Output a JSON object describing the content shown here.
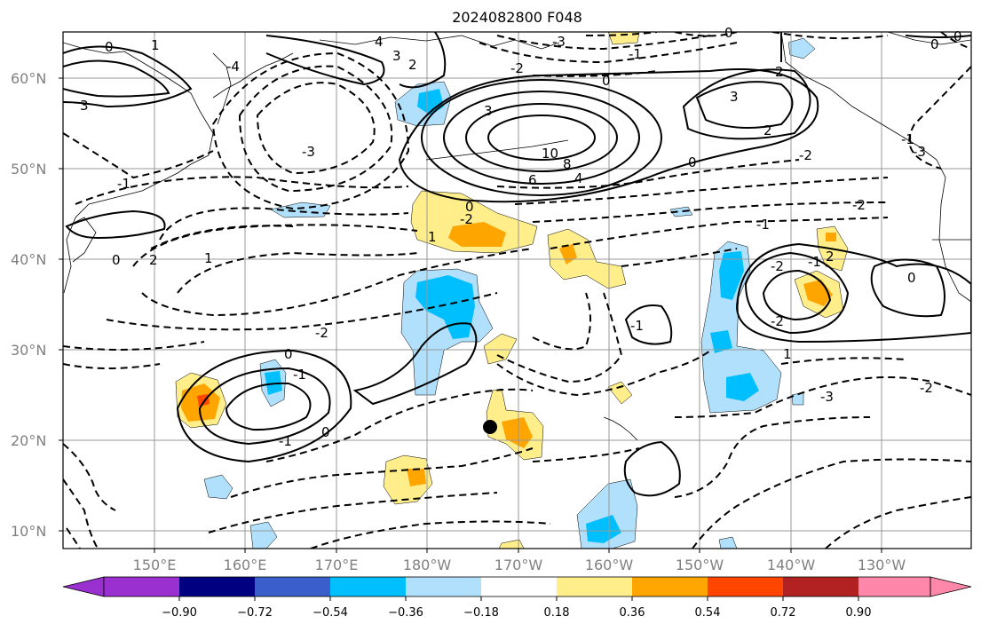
{
  "title": "2024082800 F048",
  "lat_labels": [
    "60°N",
    "50°N",
    "40°N",
    "30°N",
    "20°N",
    "10°N"
  ],
  "lon_labels": [
    "150°E",
    "160°E",
    "170°E",
    "180°W",
    "170°W",
    "160°W",
    "150°W",
    "140°W",
    "130°W"
  ],
  "colorbar": {
    "tick_labels": [
      "−0.90",
      "−0.72",
      "−0.54",
      "−0.36",
      "−0.18",
      "0.18",
      "0.36",
      "0.54",
      "0.72",
      "0.90"
    ],
    "colors": [
      "#9b30d0",
      "#000080",
      "#3a5fcd",
      "#00bfff",
      "#b0e0fb",
      "#ffffff",
      "#ffee8a",
      "#ffa500",
      "#ff4500",
      "#b22222",
      "#ff88aa"
    ]
  },
  "contour_labels": [
    "0",
    "1",
    "3",
    "-4",
    "4",
    "3",
    "2",
    "-3",
    "-2",
    "0",
    "-1",
    "3",
    "0",
    "3",
    "2",
    "2",
    "-3",
    "10",
    "8",
    "6",
    "4",
    "0",
    "-2",
    "-1",
    "-3",
    "0",
    "0",
    "-1",
    "-2",
    "-1",
    "0",
    "0",
    "2",
    "1",
    "-2",
    "1",
    "-2",
    "-1",
    "2",
    "0",
    "-2",
    "-2",
    "-1",
    "0",
    "-1",
    "1",
    "-3",
    "-2",
    "-1",
    "0"
  ],
  "marker": "black-dot"
}
